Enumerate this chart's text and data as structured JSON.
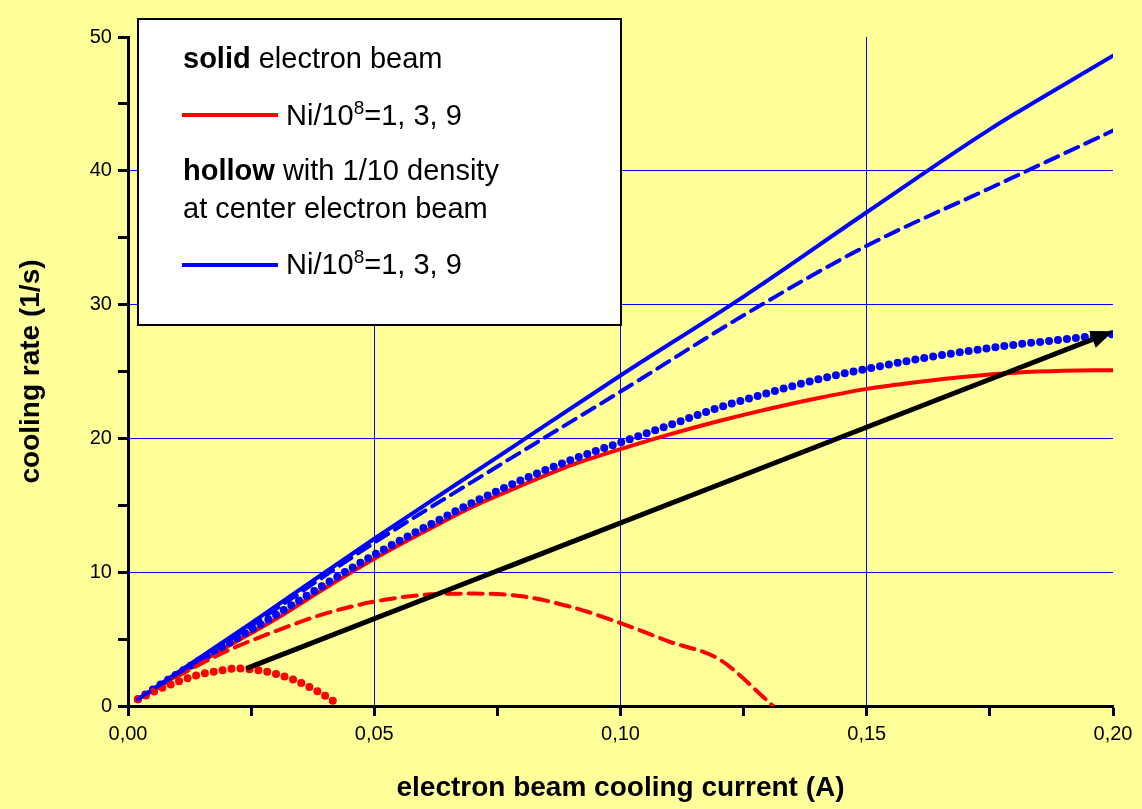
{
  "chart_data": {
    "type": "line",
    "xlabel": "electron beam cooling current (A)",
    "ylabel": "cooling rate (1/s)",
    "xlim": [
      0,
      0.2
    ],
    "ylim": [
      0,
      50
    ],
    "xticks": [
      {
        "value": 0,
        "label": "0,00"
      },
      {
        "value": 0.025,
        "label": null
      },
      {
        "value": 0.05,
        "label": "0,05"
      },
      {
        "value": 0.075,
        "label": null
      },
      {
        "value": 0.1,
        "label": "0,10"
      },
      {
        "value": 0.125,
        "label": null
      },
      {
        "value": 0.15,
        "label": "0,15"
      },
      {
        "value": 0.175,
        "label": null
      },
      {
        "value": 0.2,
        "label": "0,20"
      }
    ],
    "yticks": [
      0,
      {
        "value": 5,
        "label": null
      },
      10,
      {
        "value": 15,
        "label": null
      },
      20,
      {
        "value": 25,
        "label": null
      },
      30,
      {
        "value": 35,
        "label": null
      },
      40,
      {
        "value": 45,
        "label": null
      },
      50
    ],
    "grid": true,
    "legend": "top left",
    "marker": "none",
    "annotations": [
      "solid electron beam",
      "hollow with 1/10 density at center electron beam"
    ],
    "series": [
      {
        "name": "Ni/10$^{8}$=1, 3, 9",
        "color": "#ff0000",
        "line_style": "solid",
        "x": [
          0.002,
          0.01,
          0.02,
          0.03,
          0.04,
          0.05,
          0.06,
          0.07,
          0.08,
          0.09,
          0.1,
          0.11,
          0.12,
          0.13,
          0.14,
          0.15,
          0.16,
          0.17,
          0.18,
          0.19,
          0.2
        ],
        "values": [
          0.5,
          2.3,
          4.4,
          6.5,
          8.8,
          11.0,
          13.0,
          14.9,
          16.5,
          18.0,
          19.2,
          20.3,
          21.3,
          22.2,
          23.0,
          23.7,
          24.2,
          24.6,
          24.9,
          25.05,
          25.1
        ]
      },
      {
        "color": "#ff0000",
        "line_style": "dashed",
        "x": [
          0.002,
          0.01,
          0.02,
          0.03,
          0.04,
          0.05,
          0.06,
          0.07,
          0.08,
          0.09,
          0.1,
          0.11,
          0.12,
          0.131
        ],
        "values": [
          0.5,
          2.2,
          4.1,
          5.6,
          6.9,
          7.8,
          8.3,
          8.4,
          8.2,
          7.4,
          6.2,
          4.8,
          3.5,
          0
        ]
      },
      {
        "color": "#ff0000",
        "line_style": "dotted",
        "x": [
          0.002,
          0.006,
          0.01,
          0.014,
          0.018,
          0.022,
          0.026,
          0.03,
          0.034,
          0.038,
          0.042
        ],
        "values": [
          0.5,
          1.2,
          1.8,
          2.3,
          2.6,
          2.8,
          2.7,
          2.4,
          1.9,
          1.2,
          0.3
        ]
      },
      {
        "name": "Ni/10$^{8}$=1, 3, 9",
        "color": "#0000ff",
        "line_style": "solid",
        "x": [
          0.002,
          0.025,
          0.05,
          0.075,
          0.1,
          0.125,
          0.15,
          0.175,
          0.2
        ],
        "values": [
          0.5,
          6.2,
          12.5,
          18.6,
          24.7,
          30.6,
          36.9,
          43.1,
          48.6
        ]
      },
      {
        "color": "#0000ff",
        "line_style": "dashed",
        "x": [
          0.002,
          0.025,
          0.05,
          0.075,
          0.1,
          0.125,
          0.15,
          0.175,
          0.2
        ],
        "values": [
          0.5,
          6.0,
          12.2,
          17.9,
          23.5,
          29.2,
          34.4,
          38.7,
          43.0
        ]
      },
      {
        "color": "#0000ff",
        "line_style": "dotted",
        "x": [
          0.002,
          0.01,
          0.02,
          0.03,
          0.04,
          0.05,
          0.06,
          0.07,
          0.08,
          0.09,
          0.1,
          0.11,
          0.12,
          0.13,
          0.14,
          0.15,
          0.16,
          0.17,
          0.18,
          0.19,
          0.2
        ],
        "values": [
          0.5,
          2.4,
          4.6,
          6.8,
          9.1,
          11.3,
          13.3,
          15.2,
          16.9,
          18.4,
          19.7,
          21.0,
          22.3,
          23.4,
          24.4,
          25.2,
          25.9,
          26.5,
          27.0,
          27.4,
          27.8
        ]
      }
    ]
  }
}
